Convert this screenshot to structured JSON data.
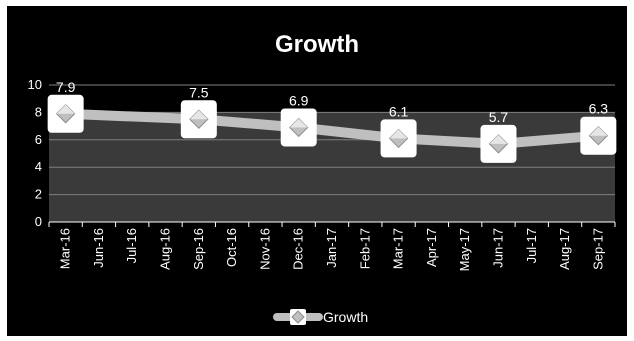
{
  "chart_data": {
    "type": "line",
    "title": "Growth",
    "xlabel": "",
    "ylabel": "",
    "ylim": [
      0,
      10
    ],
    "yticks": [
      0,
      2,
      4,
      6,
      8,
      10
    ],
    "grid": true,
    "legend_position": "bottom",
    "categories": [
      "Mar-16",
      "Jun-16",
      "Jul-16",
      "Aug-16",
      "Sep-16",
      "Oct-16",
      "Nov-16",
      "Dec-16",
      "Jan-17",
      "Feb-17",
      "Mar-17",
      "Apr-17",
      "May-17",
      "Jun-17",
      "Jul-17",
      "Aug-17",
      "Sep-17"
    ],
    "x": [
      "Mar-16",
      "Sep-16",
      "Dec-16",
      "Mar-17",
      "Jun-17",
      "Sep-17"
    ],
    "series": [
      {
        "name": "Growth",
        "values": [
          7.9,
          7.5,
          6.9,
          6.1,
          5.7,
          6.3
        ],
        "labels": [
          "7.9",
          "7.5",
          "6.9",
          "6.1",
          "5.7",
          "6.3"
        ],
        "color": "#bfbfbf"
      }
    ],
    "colors": {
      "background": "#000000",
      "text": "#ffffff",
      "grid": "#7f7f7f",
      "plot_fill": "#3a3a3a",
      "marker": "#bfbfbf"
    }
  }
}
